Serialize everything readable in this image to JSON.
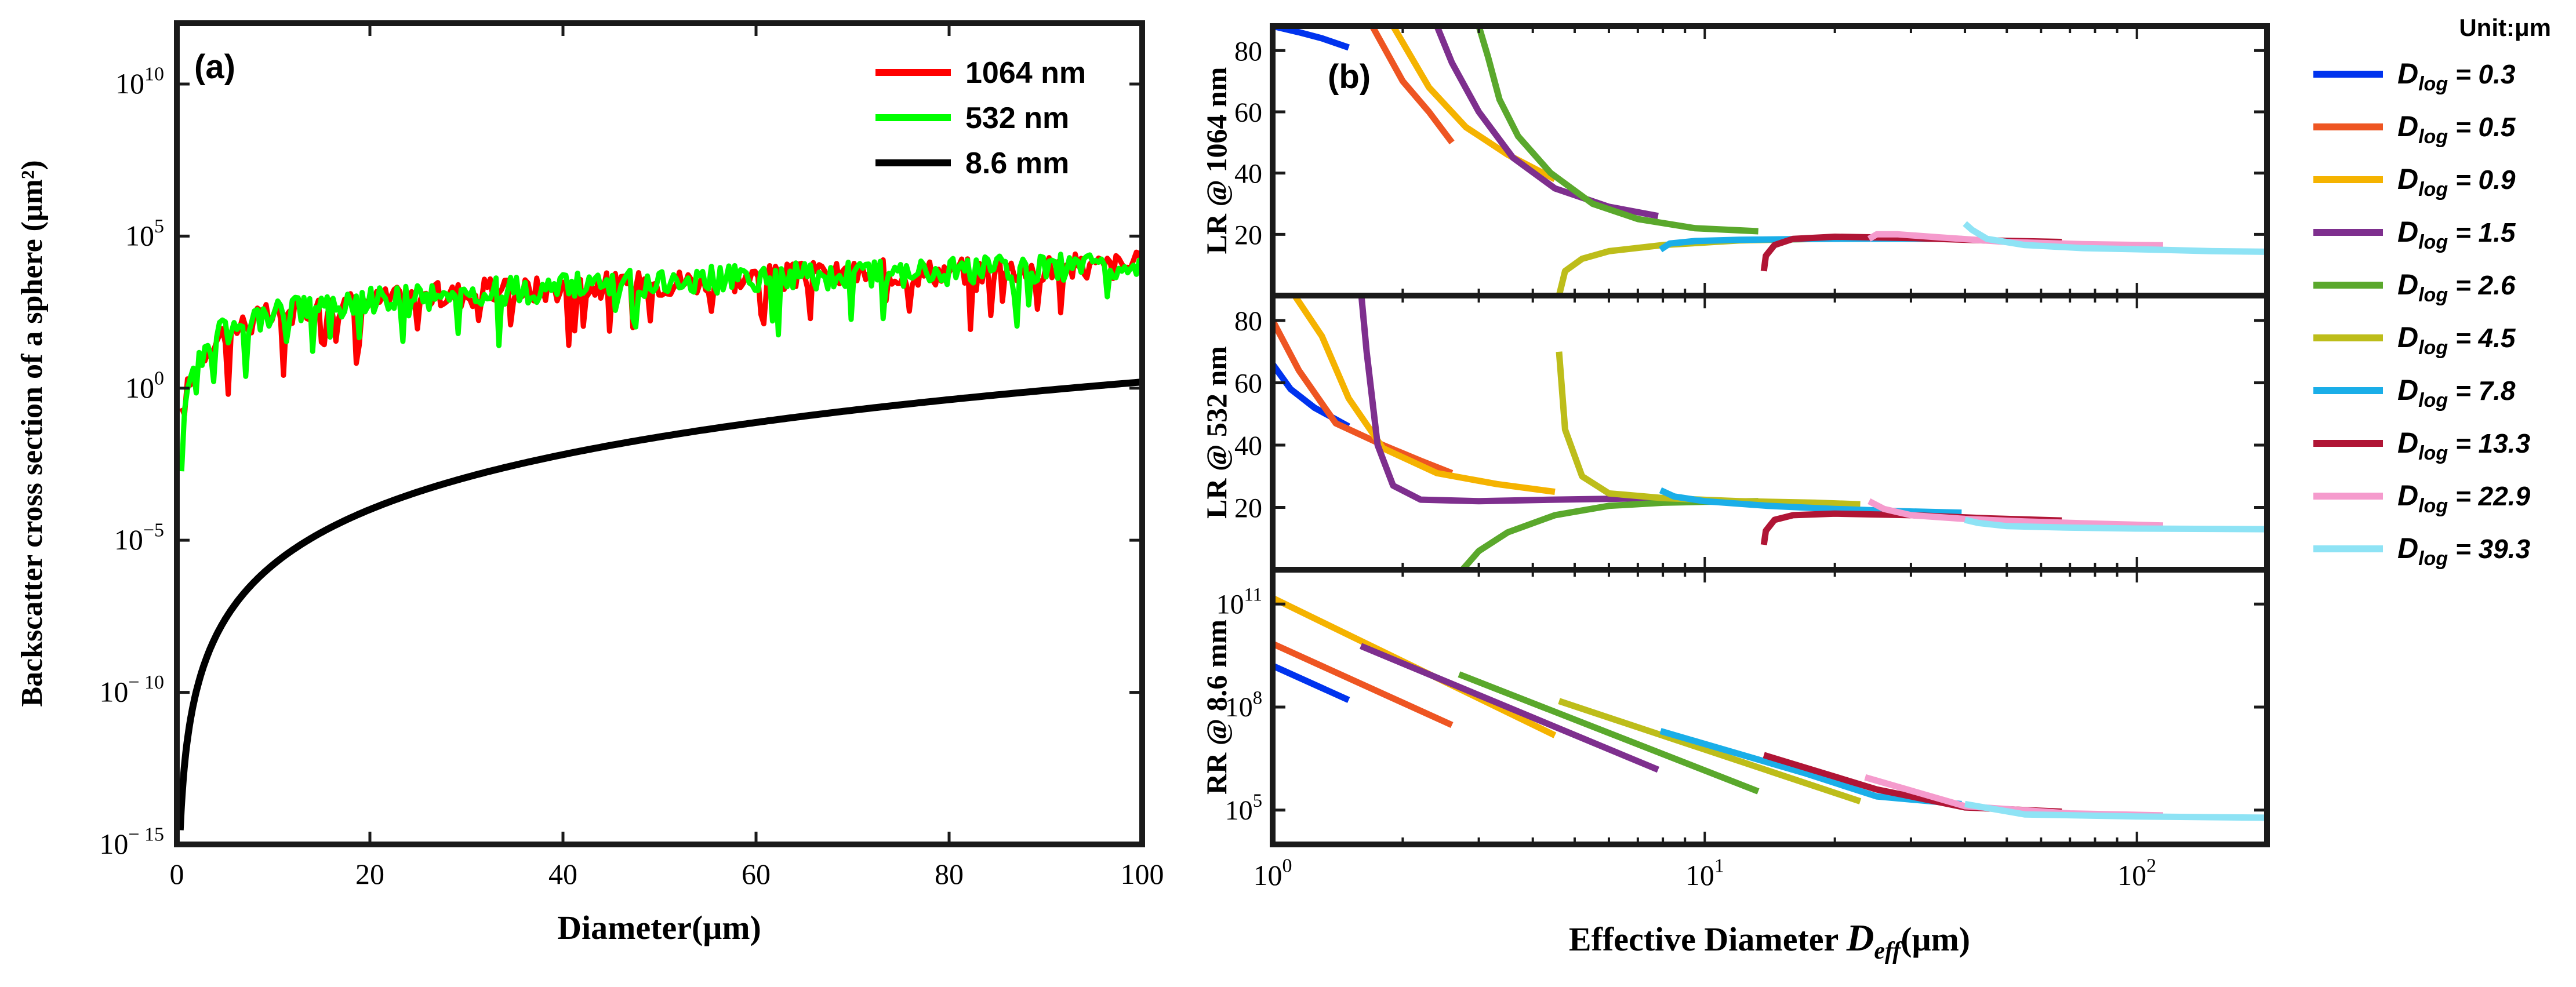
{
  "chart_data": [
    {
      "id": "panel_a",
      "type": "line",
      "panel_label": "(a)",
      "xlabel": "Diameter(μm)",
      "ylabel": "Backscatter cross section of a sphere (μm²)",
      "xscale": "linear",
      "yscale": "log",
      "xlim": [
        0,
        100
      ],
      "ylim": [
        1e-15,
        1000000000000.0
      ],
      "xticks": [
        0,
        20,
        40,
        60,
        80,
        100
      ],
      "xtick_labels": [
        "0",
        "20",
        "40",
        "60",
        "80",
        "100"
      ],
      "yticks": [
        1e-15,
        1e-10,
        1e-05,
        1,
        100000.0,
        10000000000.0
      ],
      "ytick_labels": [
        {
          "base": "10",
          "exp": "− 15"
        },
        {
          "base": "10",
          "exp": "− 10"
        },
        {
          "base": "10",
          "exp": "−5"
        },
        {
          "base": "10",
          "exp": "0"
        },
        {
          "base": "10",
          "exp": "5"
        },
        {
          "base": "10",
          "exp": "10"
        }
      ],
      "legend_position": "top-right",
      "series": [
        {
          "name": "1064 nm",
          "color": "#ff0000",
          "kind": "mie",
          "x": [
            0.5,
            1,
            2,
            3,
            5,
            8,
            12,
            20,
            30,
            40,
            50,
            60,
            70,
            80,
            90,
            100
          ],
          "y": [
            0.1,
            0.7,
            6,
            20,
            70,
            170,
            330,
            700,
            1300,
            2000,
            3000,
            4200,
            5500,
            7000,
            9000,
            11000
          ]
        },
        {
          "name": "532 nm",
          "color": "#00ff00",
          "kind": "mie",
          "x": [
            0.5,
            1,
            2,
            3,
            5,
            8,
            12,
            20,
            30,
            40,
            50,
            60,
            70,
            80,
            90,
            100
          ],
          "y": [
            0.12,
            0.9,
            7,
            22,
            75,
            180,
            340,
            720,
            1300,
            2050,
            3050,
            4200,
            5500,
            7000,
            8900,
            11000
          ]
        },
        {
          "name": "8.6 mm",
          "color": "#000000",
          "kind": "rayleigh",
          "x": [
            0.5,
            1,
            2,
            5,
            10,
            20,
            40,
            60,
            80,
            100
          ],
          "y": [
            2.4e-14,
            1.6e-12,
            1e-10,
            2.4e-08,
            1.6e-06,
            0.0001,
            0.0064,
            0.073,
            0.41,
            1.6
          ]
        }
      ]
    },
    {
      "id": "panel_b",
      "type": "line",
      "panel_label": "(b)",
      "xlabel": {
        "main": "Effective Diameter ",
        "symbol": "D",
        "sub": "eff",
        "unit": "(μm)"
      },
      "xscale": "log",
      "xlim": [
        1,
        200
      ],
      "xticks": [
        1,
        10,
        100
      ],
      "xtick_labels": [
        {
          "base": "10",
          "exp": "0"
        },
        {
          "base": "10",
          "exp": "1"
        },
        {
          "base": "10",
          "exp": "2"
        }
      ],
      "legend_title": "Unit:μm",
      "legend_position": "right",
      "dlog_series": [
        {
          "name": "D_log = 0.3",
          "label_sub": "log",
          "label_value": " = 0.3",
          "color": "#0033ee"
        },
        {
          "name": "D_log = 0.5",
          "label_sub": "log",
          "label_value": " = 0.5",
          "color": "#ee5522"
        },
        {
          "name": "D_log = 0.9",
          "label_sub": "log",
          "label_value": " = 0.9",
          "color": "#f5b300"
        },
        {
          "name": "D_log = 1.5",
          "label_sub": "log",
          "label_value": " = 1.5",
          "color": "#7e2f8e"
        },
        {
          "name": "D_log = 2.6",
          "label_sub": "log",
          "label_value": " = 2.6",
          "color": "#5aa82c"
        },
        {
          "name": "D_log = 4.5",
          "label_sub": "log",
          "label_value": " = 4.5",
          "color": "#bdbd1a"
        },
        {
          "name": "D_log = 7.8",
          "label_sub": "log",
          "label_value": " = 7.8",
          "color": "#1aaee8"
        },
        {
          "name": "D_log = 13.3",
          "label_sub": "log",
          "label_value": " = 13.3",
          "color": "#b01535"
        },
        {
          "name": "D_log = 22.9",
          "label_sub": "log",
          "label_value": " = 22.9",
          "color": "#f59bcd"
        },
        {
          "name": "D_log = 39.3",
          "label_sub": "log",
          "label_value": " = 39.3",
          "color": "#8ee3f5"
        }
      ],
      "subplots": [
        {
          "id": "lr1064",
          "ylabel": "LR @ 1064 nm",
          "yscale": "linear",
          "ylim": [
            0,
            88
          ],
          "yticks": [
            20,
            40,
            60,
            80
          ],
          "ytick_labels": [
            "20",
            "40",
            "60",
            "80"
          ],
          "series": [
            {
              "name": "D_log = 0.3",
              "x": [
                1.0,
                1.15,
                1.3,
                1.5
              ],
              "y": [
                88,
                86,
                84,
                81
              ]
            },
            {
              "name": "D_log = 0.5",
              "x": [
                1.7,
                2.0,
                2.3,
                2.6
              ],
              "y": [
                88,
                70,
                60,
                50
              ]
            },
            {
              "name": "D_log = 0.9",
              "x": [
                1.9,
                2.3,
                2.8,
                3.5,
                4.5
              ],
              "y": [
                88,
                68,
                55,
                46,
                38
              ]
            },
            {
              "name": "D_log = 1.5",
              "x": [
                2.4,
                2.6,
                3.0,
                3.6,
                4.5,
                6.0,
                7.8
              ],
              "y": [
                88,
                76,
                60,
                45,
                35,
                29,
                26
              ]
            },
            {
              "name": "D_log = 2.6",
              "x": [
                3.0,
                3.15,
                3.35,
                3.7,
                4.4,
                5.5,
                7.0,
                9.5,
                13.3
              ],
              "y": [
                88,
                78,
                64,
                52,
                40,
                30,
                25,
                22,
                21
              ]
            },
            {
              "name": "D_log = 4.5",
              "x": [
                4.6,
                4.75,
                5.2,
                6.0,
                8.0,
                12.0,
                18.0,
                22.9
              ],
              "y": [
                0,
                8,
                12,
                14.5,
                16.5,
                18,
                18.5,
                18.7
              ]
            },
            {
              "name": "D_log = 7.8",
              "x": [
                7.9,
                8.3,
                9.5,
                12.0,
                18.0,
                28.0,
                39.3
              ],
              "y": [
                15,
                17,
                17.8,
                18.2,
                18.5,
                18.6,
                18.5
              ]
            },
            {
              "name": "D_log = 13.3",
              "x": [
                13.7,
                13.85,
                14.5,
                16.0,
                20.0,
                30.0,
                45.0,
                67.0
              ],
              "y": [
                8,
                13,
                16.5,
                18.5,
                19.2,
                18.8,
                18,
                17.5
              ]
            },
            {
              "name": "D_log = 22.9",
              "x": [
                24.0,
                25.0,
                28.0,
                35.0,
                50.0,
                75.0,
                115.0
              ],
              "y": [
                18.5,
                20,
                20,
                19,
                17.5,
                16.8,
                16.4
              ]
            },
            {
              "name": "D_log = 39.3",
              "x": [
                40.0,
                41.5,
                45.0,
                55.0,
                75.0,
                110.0,
                150.0,
                200.0
              ],
              "y": [
                23.5,
                21.5,
                18.5,
                16.5,
                15.5,
                15,
                14.5,
                14.3
              ]
            }
          ]
        },
        {
          "id": "lr532",
          "ylabel": "LR @ 532 nm",
          "yscale": "linear",
          "ylim": [
            0,
            88
          ],
          "yticks": [
            20,
            40,
            60,
            80
          ],
          "ytick_labels": [
            "20",
            "40",
            "60",
            "80"
          ],
          "series": [
            {
              "name": "D_log = 0.3",
              "x": [
                1.0,
                1.1,
                1.25,
                1.5
              ],
              "y": [
                66,
                58,
                52,
                46
              ]
            },
            {
              "name": "D_log = 0.5",
              "x": [
                1.0,
                1.15,
                1.4,
                1.8,
                2.2,
                2.6
              ],
              "y": [
                80,
                64,
                47,
                40,
                35,
                31
              ]
            },
            {
              "name": "D_log = 0.9",
              "x": [
                1.1,
                1.3,
                1.5,
                1.8,
                2.4,
                3.3,
                4.5
              ],
              "y": [
                90,
                75,
                55,
                39,
                31,
                27.5,
                25
              ]
            },
            {
              "name": "D_log = 1.5",
              "x": [
                1.6,
                1.65,
                1.75,
                1.9,
                2.2,
                3.0,
                4.5,
                7.8
              ],
              "y": [
                90,
                70,
                40,
                27,
                22.5,
                22,
                22.5,
                23
              ]
            },
            {
              "name": "D_log = 2.6",
              "x": [
                2.75,
                3.0,
                3.5,
                4.5,
                6.0,
                8.0,
                10.0,
                13.3
              ],
              "y": [
                0,
                6,
                12,
                17.5,
                20.5,
                21.5,
                21.8,
                22
              ]
            },
            {
              "name": "D_log = 4.5",
              "x": [
                4.6,
                4.75,
                5.2,
                6.0,
                8.0,
                12.0,
                18.0,
                22.9
              ],
              "y": [
                70,
                45,
                30,
                24.5,
                23,
                22,
                21.5,
                21
              ]
            },
            {
              "name": "D_log = 7.8",
              "x": [
                7.9,
                8.5,
                10.0,
                14.0,
                20.0,
                28.0,
                39.3
              ],
              "y": [
                25.5,
                23.5,
                22,
                20.5,
                19.5,
                18.8,
                18.3
              ]
            },
            {
              "name": "D_log = 13.3",
              "x": [
                13.7,
                13.85,
                14.5,
                16.0,
                20.0,
                30.0,
                45.0,
                67.0
              ],
              "y": [
                8,
                12.5,
                16,
                17.5,
                18,
                17.5,
                16.5,
                15.8
              ]
            },
            {
              "name": "D_log = 22.9",
              "x": [
                24.0,
                26.0,
                30.0,
                40.0,
                55.0,
                80.0,
                115.0
              ],
              "y": [
                22,
                19.5,
                17.5,
                16.3,
                15.5,
                14.8,
                14.2
              ]
            },
            {
              "name": "D_log = 39.3",
              "x": [
                40.0,
                43.0,
                50.0,
                70.0,
                100.0,
                150.0,
                200.0
              ],
              "y": [
                16,
                15,
                14,
                13.5,
                13.2,
                13.1,
                13
              ]
            }
          ]
        },
        {
          "id": "rr86",
          "ylabel": "RR @ 8.6 mm",
          "yscale": "log",
          "ylim": [
            10000,
            1000000000000.0
          ],
          "yticks": [
            100000,
            100000000,
            100000000000
          ],
          "ytick_labels": [
            {
              "base": "10",
              "exp": "5"
            },
            {
              "base": "10",
              "exp": "8"
            },
            {
              "base": "10",
              "exp": "11"
            }
          ],
          "series": [
            {
              "name": "D_log = 0.3",
              "x": [
                1.0,
                1.5
              ],
              "y": [
                1600000000.0,
                160000000.0
              ]
            },
            {
              "name": "D_log = 0.5",
              "x": [
                1.0,
                2.6
              ],
              "y": [
                7000000000.0,
                30000000.0
              ]
            },
            {
              "name": "D_log = 0.9",
              "x": [
                1.0,
                4.5
              ],
              "y": [
                150000000000.0,
                15000000.0
              ]
            },
            {
              "name": "D_log = 1.5",
              "x": [
                1.6,
                7.8
              ],
              "y": [
                6000000000.0,
                1500000.0
              ]
            },
            {
              "name": "D_log = 2.6",
              "x": [
                2.7,
                13.3
              ],
              "y": [
                900000000.0,
                350000.0
              ]
            },
            {
              "name": "D_log = 4.5",
              "x": [
                4.6,
                22.9
              ],
              "y": [
                150000000.0,
                180000.0
              ]
            },
            {
              "name": "D_log = 7.8",
              "x": [
                7.9,
                17.0,
                25.0,
                39.3
              ],
              "y": [
                20000000.0,
                1200000.0,
                250000.0,
                150000.0
              ]
            },
            {
              "name": "D_log = 13.3",
              "x": [
                13.7,
                25.0,
                40.0,
                67.0
              ],
              "y": [
                4000000.0,
                400000.0,
                120000.0,
                90000.0
              ]
            },
            {
              "name": "D_log = 22.9",
              "x": [
                23.5,
                40.0,
                70.0,
                115.0
              ],
              "y": [
                900000.0,
                130000.0,
                80000.0,
                70000.0
              ]
            },
            {
              "name": "D_log = 39.3",
              "x": [
                40.0,
                55.0,
                100.0,
                200.0
              ],
              "y": [
                150000.0,
                75000.0,
                65000.0,
                60000.0
              ]
            }
          ]
        }
      ]
    }
  ]
}
